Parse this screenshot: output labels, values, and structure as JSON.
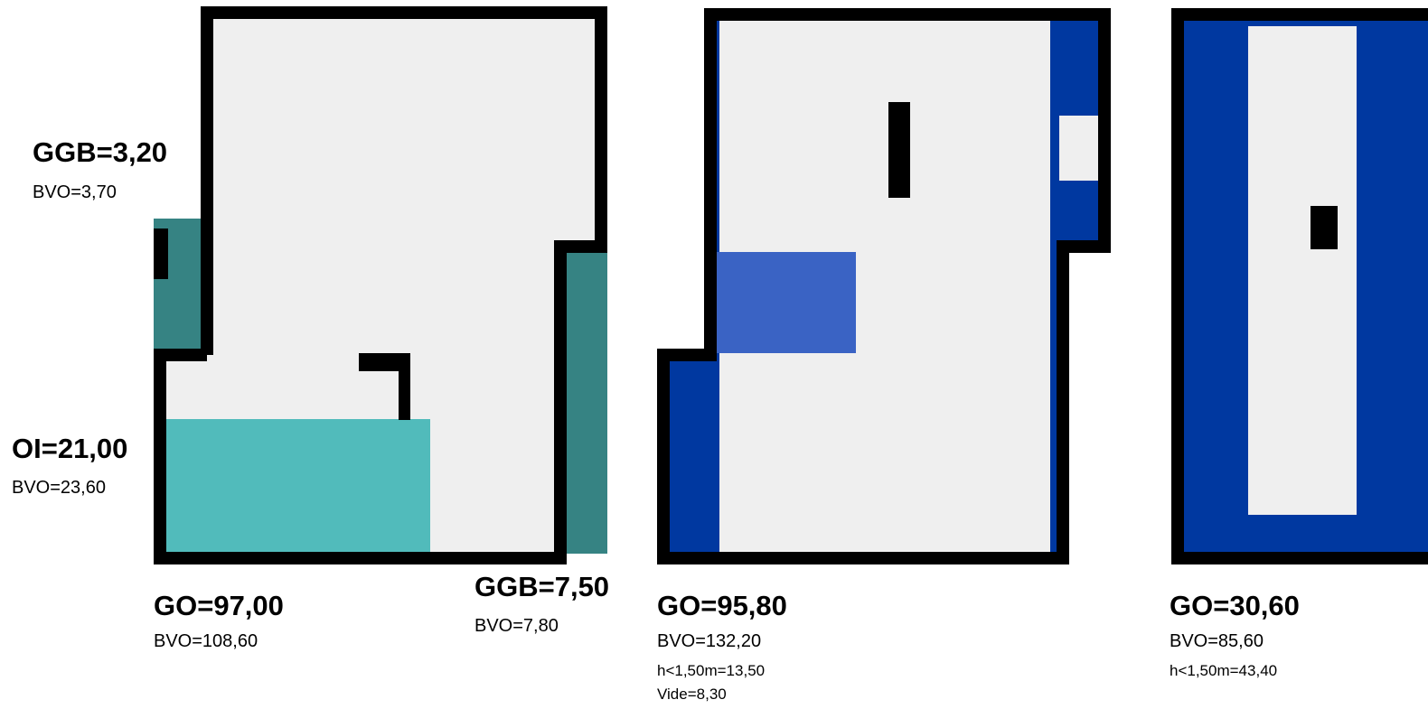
{
  "colors": {
    "floor": "#efefef",
    "wall": "#000000",
    "teal_dark": "#368383",
    "teal_light": "#51bbbb",
    "blue_dark": "#0038a0",
    "blue_medium": "#3a63c4"
  },
  "plan1": {
    "ggb_left": {
      "title": "GGB=3,20",
      "bvo": "BVO=3,70"
    },
    "oi": {
      "title": "OI=21,00",
      "bvo": "BVO=23,60"
    },
    "go": {
      "title": "GO=97,00",
      "bvo": "BVO=108,60"
    },
    "ggb_right": {
      "title": "GGB=7,50",
      "bvo": "BVO=7,80"
    }
  },
  "plan2": {
    "go": {
      "title": "GO=95,80",
      "bvo": "BVO=132,20",
      "low_height": "h<1,50m=13,50",
      "vide": "Vide=8,30"
    }
  },
  "plan3": {
    "go": {
      "title": "GO=30,60",
      "bvo": "BVO=85,60",
      "low_height": "h<1,50m=43,40"
    }
  }
}
